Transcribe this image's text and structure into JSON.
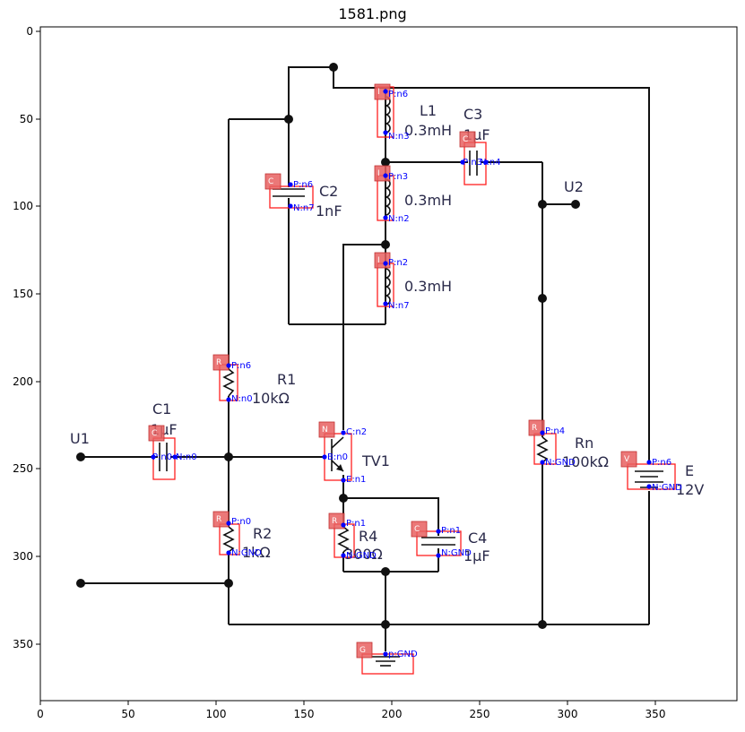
{
  "title": "1581.png",
  "axes": {
    "xticks": [
      "0",
      "50",
      "100",
      "150",
      "200",
      "250",
      "300",
      "350"
    ],
    "yticks": [
      "0",
      "50",
      "100",
      "150",
      "200",
      "250",
      "300",
      "350"
    ]
  },
  "component_labels": [
    {
      "id": "L1n",
      "text": "L1"
    },
    {
      "id": "L1v",
      "text": "0.3mH"
    },
    {
      "id": "C3n",
      "text": "C3"
    },
    {
      "id": "C3v",
      "text": "1μF"
    },
    {
      "id": "L2v",
      "text": "0.3mH"
    },
    {
      "id": "L3v",
      "text": "0.3mH"
    },
    {
      "id": "C2n",
      "text": "C2"
    },
    {
      "id": "C2v",
      "text": "1nF"
    },
    {
      "id": "U2",
      "text": "U2"
    },
    {
      "id": "R1n",
      "text": "R1"
    },
    {
      "id": "R1v",
      "text": "10kΩ"
    },
    {
      "id": "C1n",
      "text": "C1"
    },
    {
      "id": "C1v",
      "text": "1μF"
    },
    {
      "id": "U1",
      "text": "U1"
    },
    {
      "id": "TV1",
      "text": "TV1"
    },
    {
      "id": "Rnn",
      "text": "Rn"
    },
    {
      "id": "Rnv",
      "text": "100kΩ"
    },
    {
      "id": "En",
      "text": "E"
    },
    {
      "id": "Ev",
      "text": "12V"
    },
    {
      "id": "R2n",
      "text": "R2"
    },
    {
      "id": "R2v",
      "text": "1kΩ"
    },
    {
      "id": "R4n",
      "text": "R4"
    },
    {
      "id": "R4v",
      "text": "300Ω"
    },
    {
      "id": "C4n",
      "text": "C4"
    },
    {
      "id": "C4v",
      "text": "1μF"
    }
  ],
  "detections": [
    {
      "id": "d-l1",
      "tag": "I",
      "pins": [
        "P:n6",
        "N:n3"
      ]
    },
    {
      "id": "d-c3",
      "tag": "C",
      "pins": [
        "P:n3",
        "N:n4"
      ]
    },
    {
      "id": "d-l2",
      "tag": "I",
      "pins": [
        "P:n3",
        "N:n2"
      ]
    },
    {
      "id": "d-l3",
      "tag": "I",
      "pins": [
        "P:n2",
        "N:n7"
      ]
    },
    {
      "id": "d-c2",
      "tag": "C",
      "pins": [
        "P:n6",
        "N:n7"
      ]
    },
    {
      "id": "d-r1",
      "tag": "R",
      "pins": [
        "P:n6",
        "N:n0"
      ]
    },
    {
      "id": "d-c1",
      "tag": "C",
      "pins": [
        "P:n0",
        "N:n0"
      ]
    },
    {
      "id": "d-tv1",
      "tag": "N",
      "pins": [
        "C:n2",
        "B:n0",
        "E:n1"
      ]
    },
    {
      "id": "d-rn",
      "tag": "R",
      "pins": [
        "P:n4",
        "N:GND"
      ]
    },
    {
      "id": "d-e",
      "tag": "V",
      "pins": [
        "P:n6",
        "N:GND"
      ]
    },
    {
      "id": "d-r2",
      "tag": "R",
      "pins": [
        "P:n0",
        "N:GND"
      ]
    },
    {
      "id": "d-r4",
      "tag": "R",
      "pins": [
        "P:n1",
        "N:GND"
      ]
    },
    {
      "id": "d-c4",
      "tag": "C",
      "pins": [
        "P:n1",
        "N:GND"
      ]
    },
    {
      "id": "d-g",
      "tag": "G",
      "pins": [
        "p:GND"
      ]
    }
  ]
}
